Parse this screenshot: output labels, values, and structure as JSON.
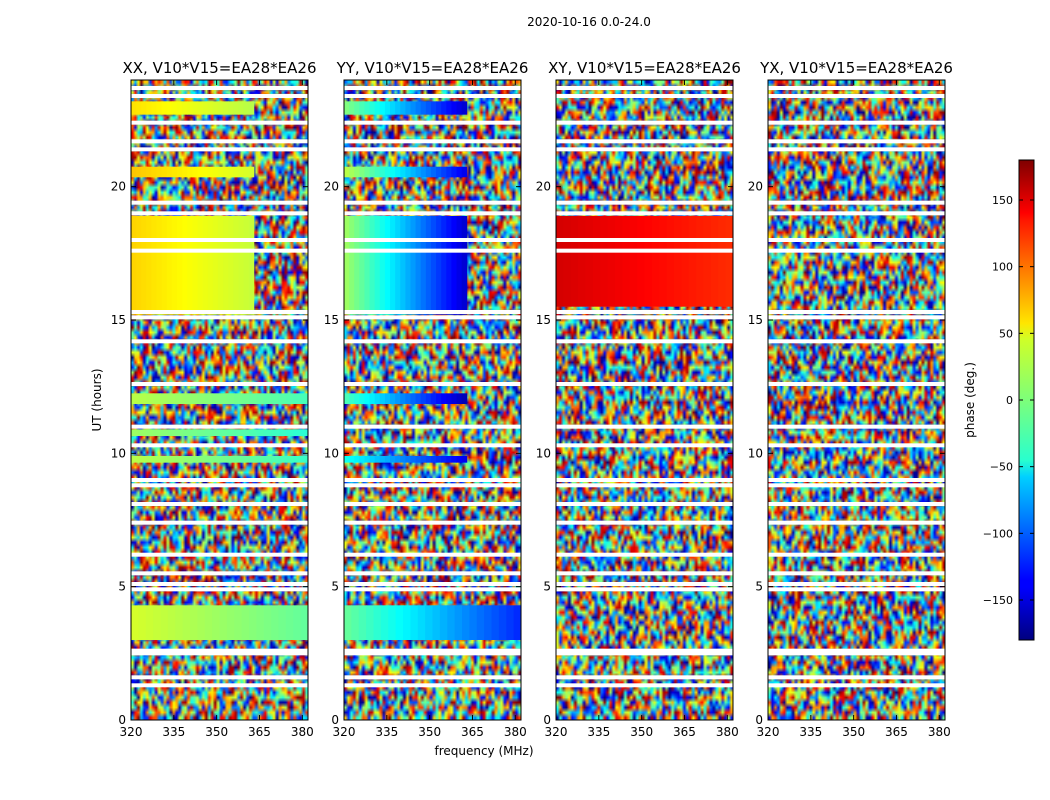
{
  "chart_data": {
    "type": "heatmap",
    "title": "2020-10-16 0.0-24.0",
    "xlabel": "frequency (MHz)",
    "ylabel": "UT (hours)",
    "xlim": [
      320,
      382
    ],
    "ylim": [
      0,
      24
    ],
    "x_ticks": [
      320,
      335,
      350,
      365,
      380
    ],
    "y_ticks": [
      0,
      5,
      10,
      15,
      20
    ],
    "panels": [
      {
        "title": "XX, V10*V15=EA28*EA26"
      },
      {
        "title": "YY, V10*V15=EA28*EA26"
      },
      {
        "title": "XY, V10*V15=EA28*EA26"
      },
      {
        "title": "YX, V10*V15=EA28*EA26"
      }
    ],
    "colorbar": {
      "label": "phase (deg.)",
      "range": [
        -180,
        180
      ],
      "ticks": [
        150,
        100,
        50,
        0,
        -50,
        -100,
        -150
      ],
      "tick_labels": [
        "150",
        "100",
        "50",
        "0",
        "−50",
        "−100",
        "−150"
      ],
      "colormap": "jet"
    },
    "coherent_regions": [
      {
        "panel": 0,
        "t0": 15.2,
        "t1": 18.9,
        "f0": 320,
        "f1": 363,
        "phase_start": 60,
        "phase_end": 25
      },
      {
        "panel": 0,
        "t0": 20.35,
        "t1": 20.75,
        "f0": 320,
        "f1": 363,
        "phase_start": 65,
        "phase_end": 30
      },
      {
        "panel": 0,
        "t0": 22.7,
        "t1": 23.2,
        "f0": 320,
        "f1": 363,
        "phase_start": 55,
        "phase_end": 20
      },
      {
        "panel": 0,
        "t0": 11.85,
        "t1": 12.25,
        "f0": 320,
        "f1": 382,
        "phase_start": 20,
        "phase_end": -20
      },
      {
        "panel": 0,
        "t0": 10.65,
        "t1": 10.9,
        "f0": 320,
        "f1": 382,
        "phase_start": 10,
        "phase_end": -30
      },
      {
        "panel": 0,
        "t0": 9.65,
        "t1": 9.9,
        "f0": 320,
        "f1": 382,
        "phase_start": 20,
        "phase_end": -25
      },
      {
        "panel": 0,
        "t0": 3.0,
        "t1": 4.3,
        "f0": 320,
        "f1": 382,
        "phase_start": 30,
        "phase_end": -10
      },
      {
        "panel": 1,
        "t0": 15.2,
        "t1": 18.9,
        "f0": 320,
        "f1": 363,
        "phase_start": 10,
        "phase_end": -150
      },
      {
        "panel": 1,
        "t0": 20.35,
        "t1": 20.75,
        "f0": 320,
        "f1": 363,
        "phase_start": 20,
        "phase_end": -140
      },
      {
        "panel": 1,
        "t0": 22.7,
        "t1": 23.2,
        "f0": 320,
        "f1": 363,
        "phase_start": 0,
        "phase_end": -150
      },
      {
        "panel": 1,
        "t0": 11.85,
        "t1": 12.25,
        "f0": 320,
        "f1": 363,
        "phase_start": -20,
        "phase_end": -160
      },
      {
        "panel": 1,
        "t0": 9.65,
        "t1": 9.9,
        "f0": 320,
        "f1": 363,
        "phase_start": -40,
        "phase_end": -140
      },
      {
        "panel": 1,
        "t0": 3.0,
        "t1": 4.3,
        "f0": 320,
        "f1": 382,
        "phase_start": -10,
        "phase_end": -120
      },
      {
        "panel": 2,
        "t0": 15.5,
        "t1": 18.9,
        "f0": 320,
        "f1": 382,
        "phase_start": 150,
        "phase_end": 120
      }
    ],
    "gaps_hours": [
      1.3,
      1.6,
      2.5,
      2.6,
      4.9,
      5.1,
      5.5,
      6.2,
      7.4,
      8.1,
      8.8,
      9.0,
      10.3,
      11.0,
      12.6,
      14.2,
      15.1,
      15.3,
      17.6,
      18.0,
      19.0,
      19.4,
      21.4,
      21.7,
      22.4,
      23.4,
      23.7
    ]
  }
}
